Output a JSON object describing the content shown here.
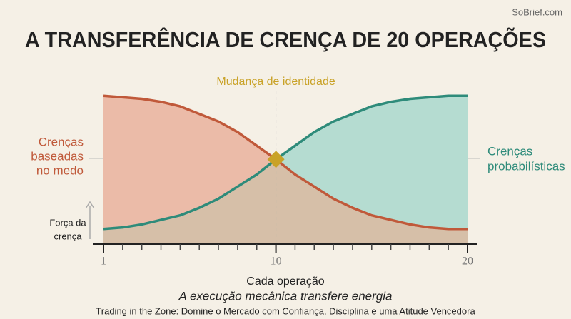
{
  "chart_data": {
    "type": "area",
    "watermark": "SoBrief.com",
    "title": "A TRANSFERÊNCIA DE CRENÇA DE 20 OPERAÇÕES",
    "annotation": {
      "text": "Mudança de identidade",
      "x": 10,
      "color": "#c9a227"
    },
    "x_label": "Cada operação",
    "y_label": [
      "Força da",
      "crença"
    ],
    "subtitle": "A execução mecânica transfere energia",
    "source": "Trading in the Zone: Domine o Mercado com Confiança, Disciplina e uma Atitude Vencedora",
    "x": [
      1,
      2,
      3,
      4,
      5,
      6,
      7,
      8,
      9,
      10,
      11,
      12,
      13,
      14,
      15,
      16,
      17,
      18,
      19,
      20
    ],
    "xlim": [
      1,
      20
    ],
    "xticks": [
      1,
      10,
      20
    ],
    "ylim": [
      0,
      100
    ],
    "overlap_color": "#d6bfa8",
    "series": [
      {
        "name": [
          "Crenças",
          "baseadas",
          "no medo"
        ],
        "color": "#c0593a",
        "fill": "#ebbba8",
        "values": [
          98,
          97,
          96,
          94,
          91,
          86,
          81,
          74,
          65,
          56,
          46,
          38,
          30,
          24,
          19,
          16,
          13,
          11,
          10,
          10
        ]
      },
      {
        "name": [
          "Crenças",
          "probabilísticas"
        ],
        "color": "#2e8b7a",
        "fill": "#b5dcd1",
        "values": [
          10,
          11,
          13,
          16,
          19,
          24,
          30,
          38,
          46,
          56,
          65,
          74,
          81,
          86,
          91,
          94,
          96,
          97,
          98,
          98
        ]
      }
    ]
  }
}
